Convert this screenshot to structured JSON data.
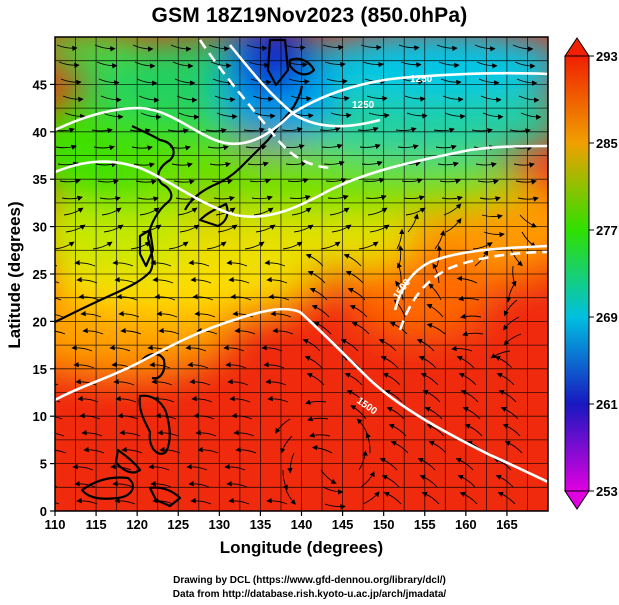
{
  "title": "GSM 18Z19Nov2023 (850.0hPa)",
  "xlabel": "Longitude (degrees)",
  "ylabel": "Latitude  (degrees)",
  "credits": [
    "Drawing by DCL (https://www.gfd-dennou.org/library/dcl/)",
    "Data from http://database.rish.kyoto-u.ac.jp/arch/jmadata/"
  ],
  "chart_data": {
    "type": "heatmap",
    "x_range": [
      110,
      170
    ],
    "y_range": [
      0,
      50
    ],
    "x_ticks": [
      "110",
      "115",
      "120",
      "125",
      "130",
      "135",
      "140",
      "145",
      "150",
      "155",
      "160",
      "165"
    ],
    "y_ticks": [
      "0",
      "5",
      "10",
      "15",
      "20",
      "25",
      "30",
      "35",
      "40",
      "45"
    ],
    "colorbar": {
      "min": 253,
      "max": 293,
      "ticks": [
        "253",
        "261",
        "269",
        "277",
        "285",
        "293"
      ],
      "colors": [
        "#e000e0",
        "#1818c0",
        "#00c0e0",
        "#30e000",
        "#f0a000",
        "#f02000"
      ]
    },
    "contour_labels": [
      "1250",
      "1250",
      "1500",
      "1500"
    ]
  }
}
